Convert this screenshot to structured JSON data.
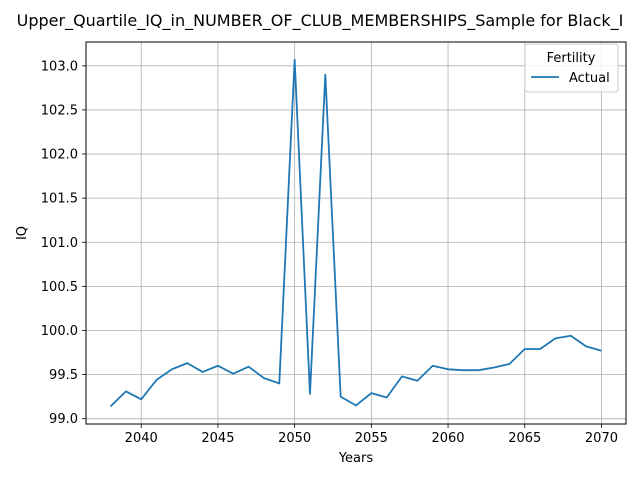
{
  "chart_data": {
    "type": "line",
    "title": "Upper_Quartile_IQ_in_NUMBER_OF_CLUB_MEMBERSHIPS_Sample for Black_I",
    "xlabel": "Years",
    "ylabel": "IQ",
    "xlim": [
      2036.4,
      2071.6
    ],
    "ylim": [
      98.94,
      103.27
    ],
    "xticks": [
      2040,
      2045,
      2050,
      2055,
      2060,
      2065,
      2070
    ],
    "xtick_labels": [
      "2040",
      "2045",
      "2050",
      "2055",
      "2060",
      "2065",
      "2070"
    ],
    "yticks": [
      99.0,
      99.5,
      100.0,
      100.5,
      101.0,
      101.5,
      102.0,
      102.5,
      103.0
    ],
    "ytick_labels": [
      "99.0",
      "99.5",
      "100.0",
      "100.5",
      "101.0",
      "101.5",
      "102.0",
      "102.5",
      "103.0"
    ],
    "grid": true,
    "legend": {
      "title": "Fertility",
      "position": "top-right"
    },
    "series": [
      {
        "name": "Actual",
        "color": "#1f77b4",
        "x": [
          2038,
          2039,
          2040,
          2041,
          2042,
          2043,
          2044,
          2045,
          2046,
          2047,
          2048,
          2049,
          2050,
          2051,
          2052,
          2053,
          2054,
          2055,
          2056,
          2057,
          2058,
          2059,
          2060,
          2061,
          2062,
          2063,
          2064,
          2065,
          2066,
          2067,
          2068,
          2069,
          2070
        ],
        "y": [
          99.14,
          99.31,
          99.22,
          99.44,
          99.56,
          99.63,
          99.53,
          99.6,
          99.51,
          99.59,
          99.46,
          99.4,
          103.07,
          99.28,
          102.9,
          99.25,
          99.15,
          99.29,
          99.24,
          99.48,
          99.43,
          99.6,
          99.56,
          99.55,
          99.55,
          99.58,
          99.62,
          99.79,
          99.79,
          99.91,
          99.94,
          99.82,
          99.77
        ]
      }
    ]
  }
}
